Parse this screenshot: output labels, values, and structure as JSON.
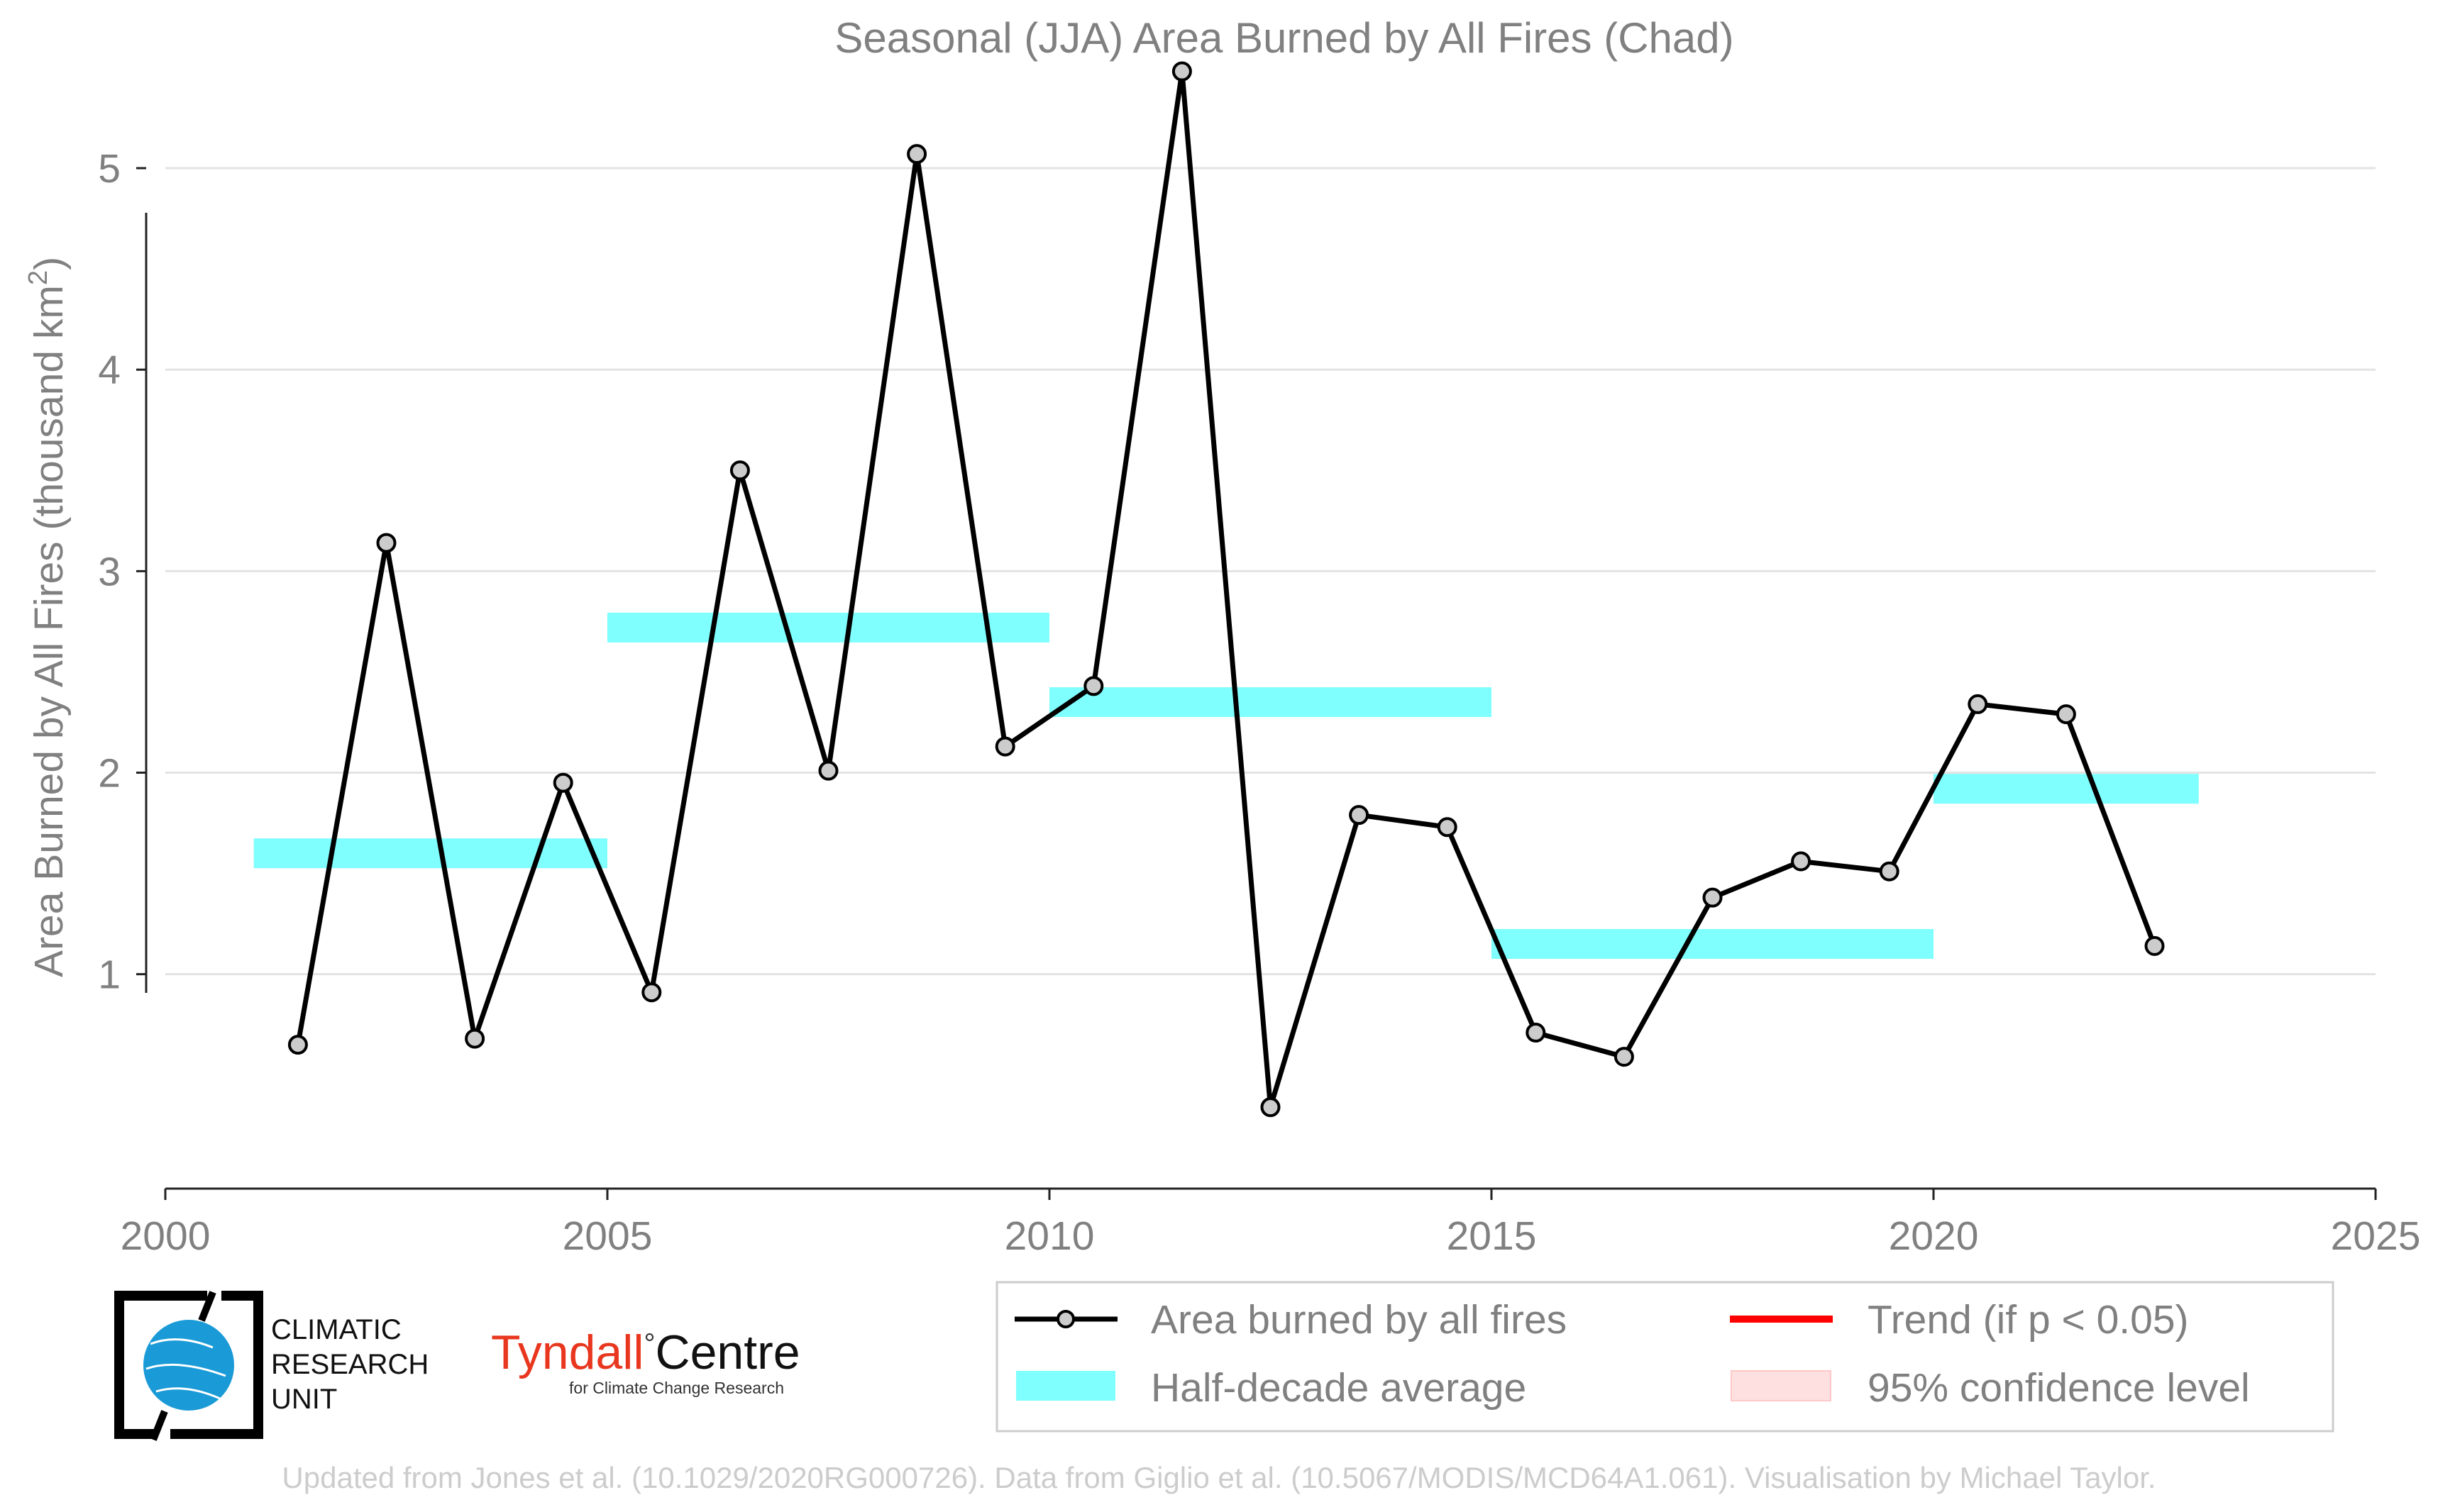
{
  "colors": {
    "series_line": "#000000",
    "marker_fill": "#cccccc",
    "half_decade": "#80ffff",
    "trend": "#ff0000",
    "confidence": "#ffe0e0",
    "text": "#808080",
    "footer_text": "#cccccc",
    "tyndall_red": "#e8371e"
  },
  "chart_data": {
    "type": "line",
    "title": "Seasonal (JJA) Area Burned by All Fires (Chad)",
    "ylabel_main": "Area Burned by All Fires (thousand km",
    "ylabel_sup": "2",
    "ylabel_close": ")",
    "xlim": [
      2000,
      2025
    ],
    "ylim": [
      -0.05,
      5.5
    ],
    "x_ticks": [
      2000,
      2005,
      2010,
      2015,
      2020,
      2025
    ],
    "y_ticks": [
      1,
      2,
      3,
      4,
      5
    ],
    "x_tick_labels": [
      "2000",
      "2005",
      "2010",
      "2015",
      "2020",
      "2025"
    ],
    "y_tick_labels": [
      "1",
      "2",
      "3",
      "4",
      "5"
    ],
    "grid": "horizontal",
    "series": [
      {
        "name": "Area burned by all fires",
        "x": [
          2001.5,
          2002.5,
          2003.5,
          2004.5,
          2005.5,
          2006.5,
          2007.5,
          2008.5,
          2009.5,
          2010.5,
          2011.5,
          2012.5,
          2013.5,
          2014.5,
          2015.5,
          2016.5,
          2017.5,
          2018.5,
          2019.5,
          2020.5,
          2021.5,
          2022.5
        ],
        "y": [
          0.65,
          3.14,
          0.68,
          1.95,
          0.91,
          3.5,
          2.01,
          5.07,
          2.13,
          2.43,
          5.48,
          0.34,
          1.79,
          1.73,
          0.71,
          0.59,
          1.38,
          1.56,
          1.51,
          2.34,
          2.29,
          1.14
        ]
      }
    ],
    "half_decade_averages": [
      {
        "x_start": 2001,
        "x_end": 2005,
        "value": 1.6
      },
      {
        "x_start": 2005,
        "x_end": 2010,
        "value": 2.72
      },
      {
        "x_start": 2010,
        "x_end": 2015,
        "value": 2.35
      },
      {
        "x_start": 2015,
        "x_end": 2020,
        "value": 1.15
      },
      {
        "x_start": 2020,
        "x_end": 2023,
        "value": 1.92
      }
    ],
    "legend": {
      "placement": "bottom-right",
      "items": [
        {
          "label": "Area burned by all fires",
          "kind": "line-marker"
        },
        {
          "label": "Trend (if p < 0.05)",
          "kind": "trend-line"
        },
        {
          "label": "Half-decade average",
          "kind": "half-decade"
        },
        {
          "label": "95% confidence level",
          "kind": "confidence"
        }
      ]
    }
  },
  "logos": {
    "cru_line1": "CLIMATIC",
    "cru_line2": "RESEARCH",
    "cru_line3": "UNIT",
    "tyndall_word": "Tyndall",
    "tyndall_degree": "°",
    "tyndall_centre": "Centre",
    "tyndall_sub": "for Climate Change Research"
  },
  "footer": "Updated from Jones et al. (10.1029/2020RG000726). Data from Giglio et al. (10.5067/MODIS/MCD64A1.061). Visualisation by Michael Taylor."
}
